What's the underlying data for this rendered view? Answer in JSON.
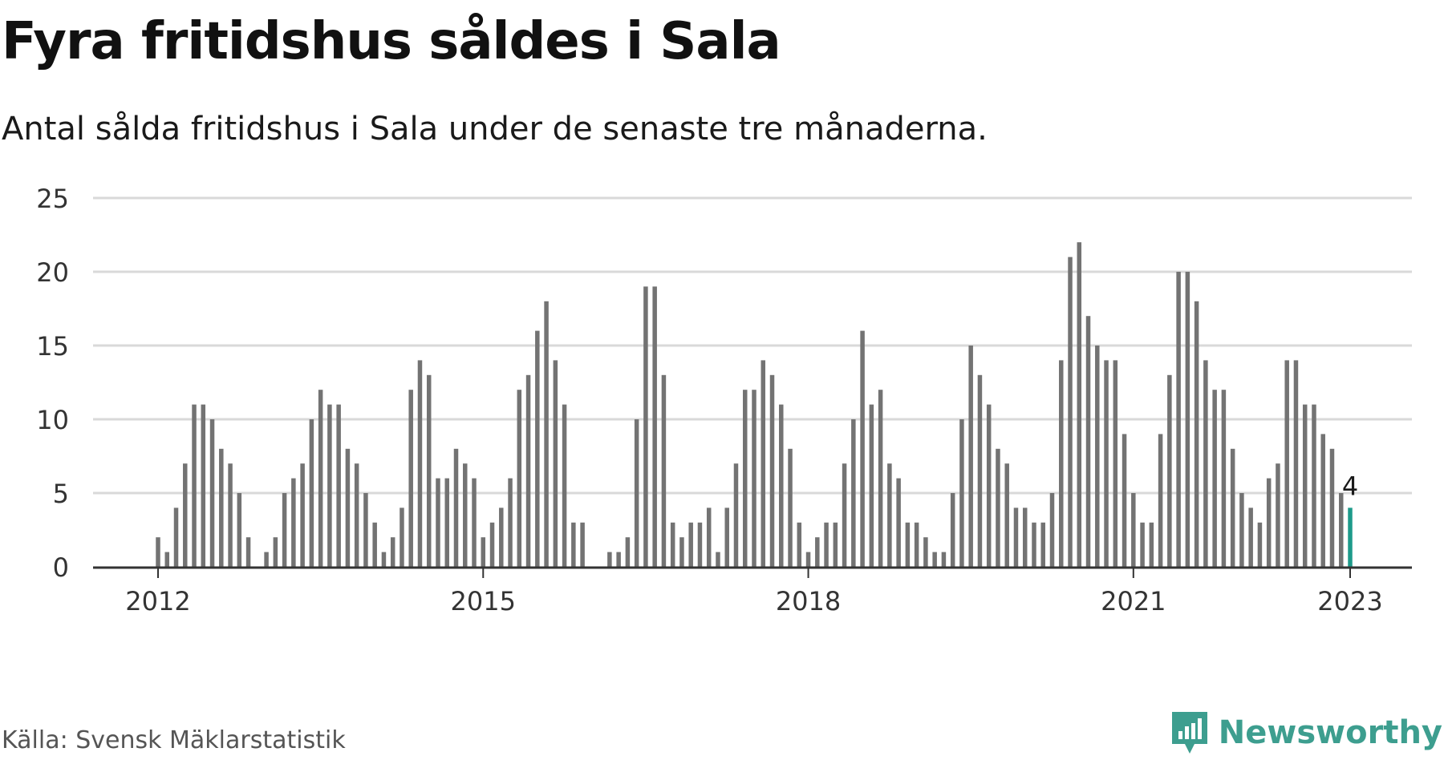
{
  "header": {
    "title": "Fyra fritidshus såldes i Sala",
    "subtitle": "Antal sålda fritidshus i Sala under de senaste tre månaderna."
  },
  "footer": {
    "source": "Källa: Svensk Mäklarstatistik",
    "brand": "Newsworthy",
    "brand_icon": "speech-bubble-bar-chart-icon"
  },
  "colors": {
    "bar": "#737373",
    "highlight": "#1d9a8a",
    "grid": "#d9d9d9",
    "axis": "#333333",
    "brand": "#3d9e8f"
  },
  "chart_data": {
    "type": "bar",
    "title": "Fyra fritidshus såldes i Sala",
    "subtitle": "Antal sålda fritidshus i Sala under de senaste tre månaderna.",
    "x_start": "2012-01",
    "x_end": "2023-01",
    "interval": "month",
    "ylim": [
      0,
      25
    ],
    "yticks": [
      0,
      5,
      10,
      15,
      20,
      25
    ],
    "xticks": [
      {
        "label": "2012",
        "date": "2012-01"
      },
      {
        "label": "2015",
        "date": "2015-01"
      },
      {
        "label": "2018",
        "date": "2018-01"
      },
      {
        "label": "2021",
        "date": "2021-01"
      },
      {
        "label": "2023",
        "date": "2023-01"
      }
    ],
    "grid": true,
    "legend": "none",
    "annotation": {
      "date": "2023-01",
      "value": 4,
      "label": "4"
    },
    "values": [
      2,
      1,
      4,
      7,
      11,
      11,
      10,
      8,
      7,
      5,
      2,
      null,
      1,
      2,
      5,
      6,
      7,
      10,
      12,
      11,
      11,
      8,
      7,
      5,
      3,
      1,
      2,
      4,
      12,
      14,
      13,
      6,
      6,
      8,
      7,
      6,
      2,
      3,
      4,
      6,
      12,
      13,
      16,
      18,
      14,
      11,
      3,
      3,
      null,
      null,
      1,
      1,
      2,
      10,
      19,
      19,
      13,
      3,
      2,
      3,
      3,
      4,
      1,
      4,
      7,
      12,
      12,
      14,
      13,
      11,
      8,
      3,
      1,
      2,
      3,
      3,
      7,
      10,
      16,
      11,
      12,
      7,
      6,
      3,
      3,
      2,
      1,
      1,
      5,
      10,
      15,
      13,
      11,
      8,
      7,
      4,
      4,
      3,
      3,
      5,
      14,
      21,
      22,
      17,
      15,
      14,
      14,
      9,
      5,
      3,
      3,
      9,
      13,
      20,
      20,
      18,
      14,
      12,
      12,
      8,
      5,
      4,
      3,
      6,
      7,
      14,
      14,
      11,
      11,
      9,
      8,
      5,
      4
    ]
  }
}
